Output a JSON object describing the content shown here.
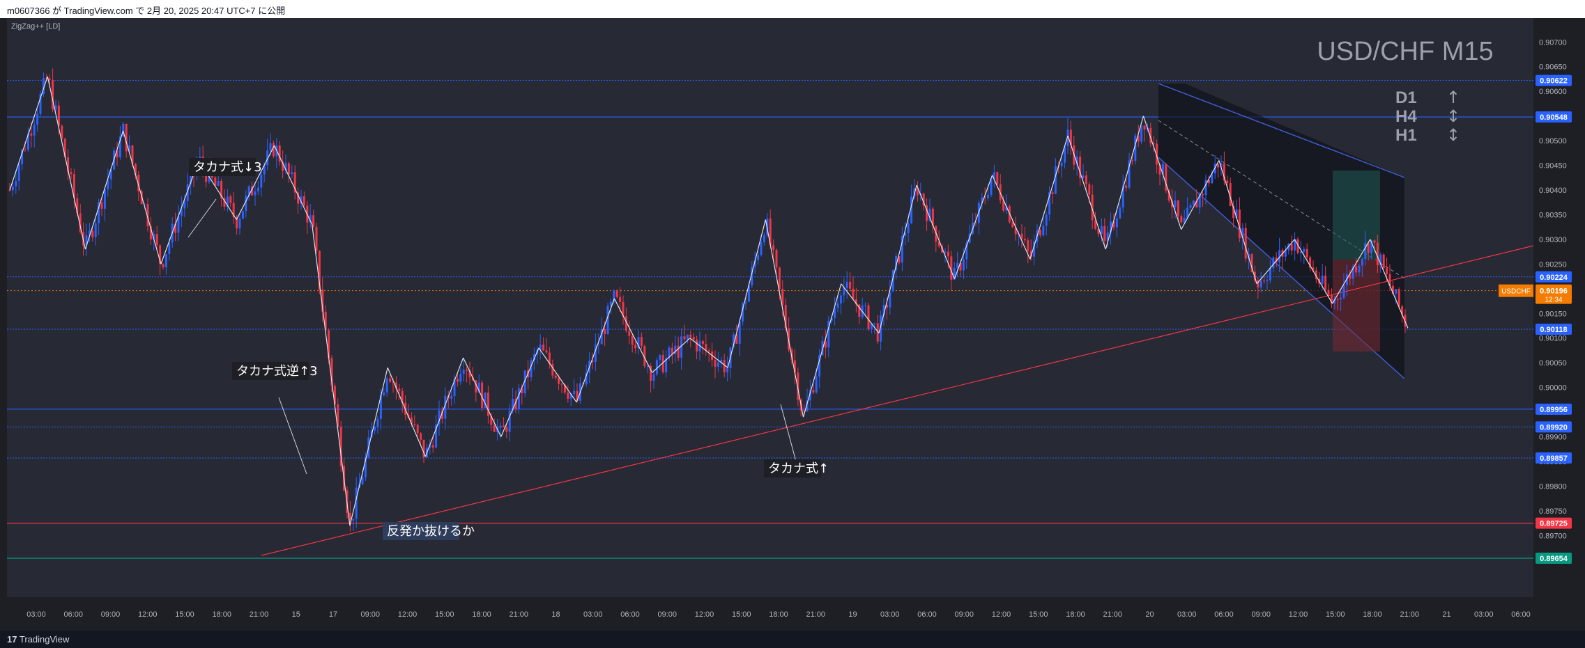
{
  "header": {
    "published_by": "m0607366 が TradingView.com で 2月 20, 2025 20:47 UTC+7 に公開"
  },
  "footer": {
    "brand": "TradingView"
  },
  "indicator_label": "ZigZag++ [LD]",
  "colors": {
    "bull": "#2962ff",
    "bear": "#f23645",
    "zigzag": "#e0e3eb",
    "trend": "#f23645",
    "channel": "#3f5fd9"
  },
  "timeframe_panel": [
    {
      "tf": "D1",
      "arrow": "↑"
    },
    {
      "tf": "H4",
      "arrow": "↕"
    },
    {
      "tf": "H1",
      "arrow": "↕"
    }
  ],
  "chart_data": {
    "type": "candlestick",
    "title": "USD/CHF M15",
    "symbol": "USDCHF",
    "last_price": "0.90196",
    "countdown": "12:34",
    "ylim": [
      0.8963,
      0.9073
    ],
    "y_ticks": [
      "0.90700",
      "0.90650",
      "0.90600",
      "0.90550",
      "0.90500",
      "0.90450",
      "0.90400",
      "0.90350",
      "0.90300",
      "0.90250",
      "0.90200",
      "0.90150",
      "0.90100",
      "0.90050",
      "0.90000",
      "0.89950",
      "0.89900",
      "0.89850",
      "0.89800",
      "0.89750",
      "0.89700"
    ],
    "x_ticks": [
      "03:00",
      "06:00",
      "09:00",
      "12:00",
      "15:00",
      "18:00",
      "21:00",
      "15",
      "17",
      "09:00",
      "12:00",
      "15:00",
      "18:00",
      "21:00",
      "18",
      "03:00",
      "06:00",
      "09:00",
      "12:00",
      "15:00",
      "18:00",
      "21:00",
      "19",
      "03:00",
      "06:00",
      "09:00",
      "12:00",
      "15:00",
      "18:00",
      "21:00",
      "20",
      "03:00",
      "06:00",
      "09:00",
      "12:00",
      "15:00",
      "18:00",
      "21:00",
      "21",
      "03:00",
      "06:00"
    ],
    "zigzag": [
      0.904,
      0.9063,
      0.9028,
      0.9052,
      0.9025,
      0.9046,
      0.9034,
      0.9049,
      0.9033,
      0.8972,
      0.9004,
      0.8986,
      0.9006,
      0.899,
      0.9008,
      0.8997,
      0.9018,
      0.9003,
      0.901,
      0.9004,
      0.9034,
      0.8994,
      0.9021,
      0.9011,
      0.9041,
      0.9022,
      0.9043,
      0.9026,
      0.9051,
      0.9028,
      0.9055,
      0.9032,
      0.9046,
      0.9021,
      0.903,
      0.9017,
      0.903,
      0.9012
    ],
    "levels": [
      {
        "price": "0.90622",
        "color": "#2962ff",
        "style": "dotted"
      },
      {
        "price": "0.90548",
        "color": "#2962ff",
        "style": "solid"
      },
      {
        "price": "0.90224",
        "color": "#2962ff",
        "style": "dotted"
      },
      {
        "price": "0.90118",
        "color": "#2962ff",
        "style": "dotted"
      },
      {
        "price": "0.89956",
        "color": "#2962ff",
        "style": "solid"
      },
      {
        "price": "0.89920",
        "color": "#2962ff",
        "style": "dotted"
      },
      {
        "price": "0.89857",
        "color": "#2962ff",
        "style": "dotted"
      },
      {
        "price": "0.89725",
        "color": "#f23645",
        "style": "solid"
      },
      {
        "price": "0.89654",
        "color": "#089981",
        "style": "solid"
      }
    ],
    "annotations": [
      {
        "text": "タカナ式↓3"
      },
      {
        "text": "タカナ式逆↑3"
      },
      {
        "text": "タカナ式↑"
      },
      {
        "text": "反発か抜けるか"
      }
    ],
    "position": {
      "stop": 0.90285,
      "target": 0.90455,
      "entry_low": 0.90118
    }
  }
}
